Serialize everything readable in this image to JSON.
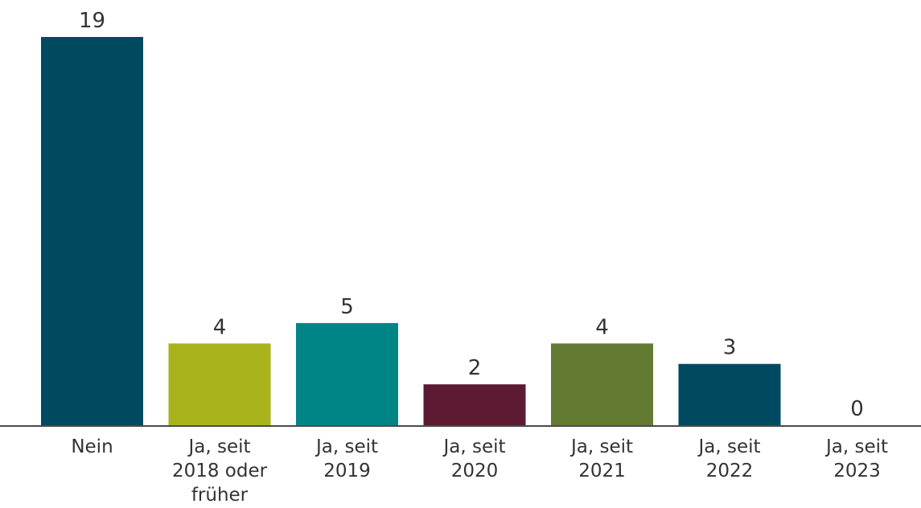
{
  "chart_data": {
    "type": "bar",
    "categories": [
      [
        "Nein"
      ],
      [
        "Ja, seit",
        "2018 oder",
        "früher"
      ],
      [
        "Ja, seit",
        "2019"
      ],
      [
        "Ja, seit",
        "2020"
      ],
      [
        "Ja, seit",
        "2021"
      ],
      [
        "Ja, seit",
        "2022"
      ],
      [
        "Ja, seit",
        "2023"
      ]
    ],
    "values": [
      19,
      4,
      5,
      2,
      4,
      3,
      0
    ],
    "colors": [
      "#004a61",
      "#a9b41c",
      "#008587",
      "#5c1a33",
      "#627a32",
      "#004a61",
      "#004a61"
    ],
    "axis_color": "#4a4a4a",
    "title": "",
    "xlabel": "",
    "ylabel": "",
    "ylim": [
      0,
      19
    ],
    "grid": false,
    "legend": "none"
  }
}
